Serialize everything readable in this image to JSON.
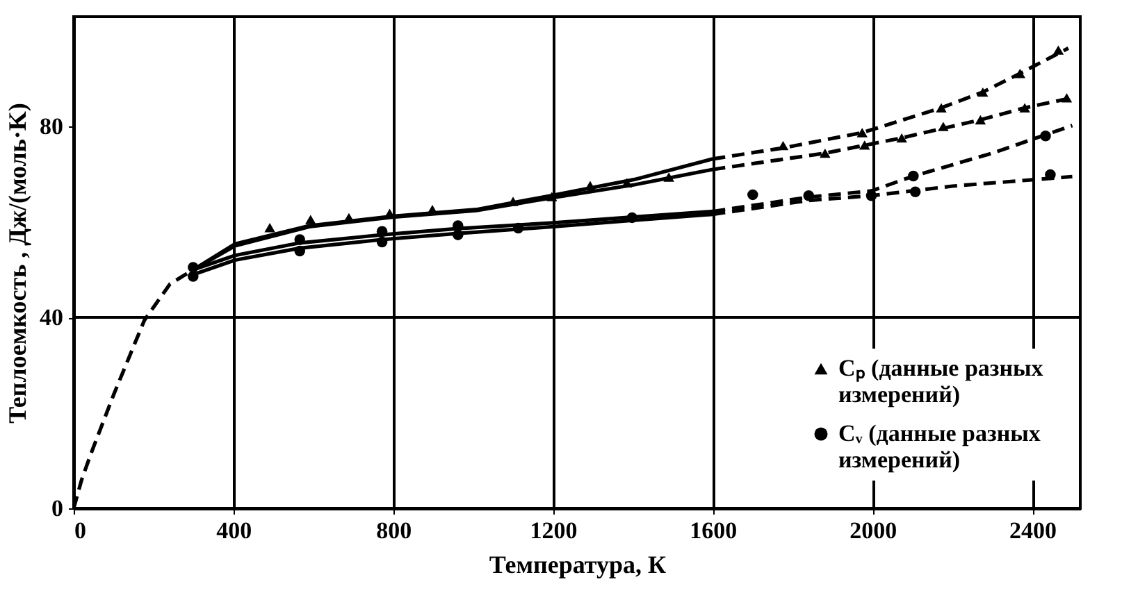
{
  "chart_data": {
    "type": "line",
    "xlabel": "Температура, К",
    "ylabel": "Теплоемкость , Дж/(моль·K)",
    "xlim": [
      0,
      2520
    ],
    "ylim": [
      0,
      103
    ],
    "xticks": [
      0,
      400,
      800,
      1200,
      1600,
      2000,
      2400
    ],
    "yticks": [
      0,
      40,
      80
    ],
    "grid": "x",
    "legend": "bottom right",
    "ref_lines": [
      {
        "axis": "y",
        "value": 40,
        "color": "#000000",
        "line_style": "solid"
      }
    ],
    "series": [
      {
        "color": "#000000",
        "line_style": "dashed",
        "x": [
          0,
          20,
          43,
          101,
          177,
          241,
          300
        ],
        "values": [
          0,
          6,
          11.4,
          24,
          39.4,
          47,
          50
        ]
      },
      {
        "color": "#000000",
        "line_style": "solid",
        "x": [
          300,
          404,
          590,
          799,
          1008,
          1194,
          1404,
          1600
        ],
        "values": [
          50,
          55.4,
          59.2,
          61.2,
          62.6,
          65.5,
          68.9,
          73.2
        ]
      },
      {
        "color": "#000000",
        "line_style": "solid",
        "x": [
          300,
          404,
          590,
          799,
          1008,
          1194,
          1404,
          1600
        ],
        "values": [
          50,
          55,
          59,
          61,
          62.4,
          65,
          67.8,
          71
        ]
      },
      {
        "color": "#000000",
        "line_style": "solid",
        "x": [
          300,
          404,
          566,
          772,
          962,
          1200,
          1398,
          1600
        ],
        "values": [
          50,
          53,
          55.6,
          57.3,
          58.6,
          59.8,
          61,
          62.2
        ]
      },
      {
        "color": "#000000",
        "line_style": "solid",
        "x": [
          300,
          404,
          566,
          772,
          962,
          1200,
          1398,
          1600
        ],
        "values": [
          49,
          52,
          54.5,
          56.3,
          57.6,
          59,
          60.3,
          61.6
        ]
      },
      {
        "color": "#000000",
        "line_style": "dashed",
        "x": [
          1600,
          1776,
          1974,
          2172,
          2276,
          2369,
          2490
        ],
        "values": [
          73.2,
          75.5,
          78.7,
          83.9,
          87.2,
          91.1,
          96.4
        ]
      },
      {
        "color": "#000000",
        "line_style": "dashed",
        "x": [
          1600,
          1881,
          2073,
          2270,
          2381,
          2500
        ],
        "values": [
          71,
          74.4,
          77.6,
          81.4,
          83.9,
          86
        ]
      },
      {
        "color": "#000000",
        "line_style": "dashed",
        "x": [
          1600,
          1840,
          1997,
          2102,
          2300,
          2500
        ],
        "values": [
          62.2,
          65.2,
          66.5,
          69.6,
          74.4,
          80.2
        ]
      },
      {
        "color": "#000000",
        "line_style": "dashed",
        "x": [
          1600,
          1840,
          1997,
          2200,
          2500
        ],
        "values": [
          61.6,
          64.5,
          65.5,
          67.5,
          69.5
        ]
      },
      {
        "type": "scatter",
        "name": "Cₚ (данные разных измерений)",
        "color": "#000000",
        "marker": "triangle",
        "x": [
          1100,
          1776,
          1974,
          2172,
          2276,
          2369,
          2465
        ],
        "values": [
          64.3,
          76,
          78.7,
          83.9,
          87.2,
          91.1,
          96
        ]
      },
      {
        "type": "scatter",
        "color": "#000000",
        "marker": "triangle",
        "x": [
          491,
          593,
          689,
          791,
          898,
          1197,
          1293,
          1385,
          1490,
          1881,
          1980,
          2073,
          2177,
          2270,
          2381,
          2486
        ],
        "values": [
          58.8,
          60.5,
          60.9,
          61.8,
          62.6,
          65.3,
          67.6,
          68.2,
          69.4,
          74.4,
          76.1,
          77.6,
          80,
          81.4,
          83.9,
          86
        ]
      },
      {
        "type": "scatter",
        "name": "Cᵥ (данные разных измерений)",
        "color": "#000000",
        "marker": "circle",
        "x": [
          299,
          566,
          772,
          962,
          1113,
          1700,
          1840,
          2102,
          2433
        ],
        "values": [
          50.5,
          56.3,
          58,
          59.2,
          58.7,
          65.7,
          65.5,
          69.6,
          78
        ]
      },
      {
        "type": "scatter",
        "color": "#000000",
        "marker": "circle",
        "x": [
          299,
          566,
          772,
          962,
          1398,
          1997,
          2107,
          2445
        ],
        "values": [
          48.6,
          53.9,
          55.8,
          57.3,
          60.9,
          65.5,
          66.3,
          69.9
        ]
      }
    ]
  }
}
